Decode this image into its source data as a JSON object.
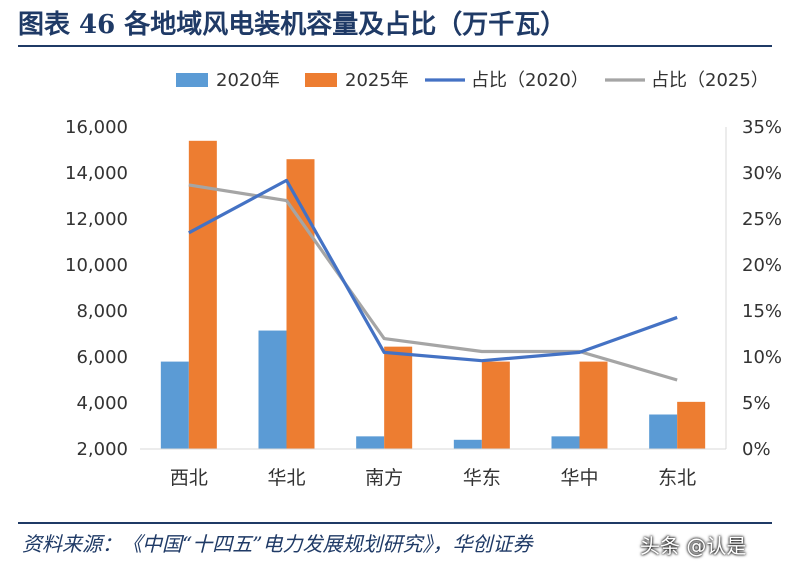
{
  "figure_title": "图表 46  各地域风电装机容量及占比（万千瓦）",
  "source_text": "资料来源：《中国“十四五”电力发展规划研究》，华创证券",
  "watermark": "头条 @认是",
  "colors": {
    "bar2020": "#5b9bd5",
    "bar2025": "#ed7d31",
    "line2020": "#4472c4",
    "line2025": "#a5a5a5",
    "title": "#1f3a66"
  },
  "chart_data": {
    "type": "bar",
    "title": "",
    "xlabel": "",
    "ylabel": "",
    "categories": [
      "西北",
      "华北",
      "南方",
      "华东",
      "华中",
      "东北"
    ],
    "ylim": [
      2000,
      16000
    ],
    "y_ticks": [
      "2,000",
      "4,000",
      "6,000",
      "8,000",
      "10,000",
      "12,000",
      "14,000",
      "16,000"
    ],
    "y2lim": [
      0,
      35
    ],
    "y2_ticks": [
      "0%",
      "5%",
      "10%",
      "15%",
      "20%",
      "25%",
      "30%",
      "35%"
    ],
    "series": [
      {
        "name": "2020年",
        "type": "bar",
        "axis": "left",
        "values": [
          5800,
          7150,
          2550,
          2400,
          2550,
          3500
        ]
      },
      {
        "name": "2025年",
        "type": "bar",
        "axis": "right_none",
        "values": [
          15400,
          14600,
          6450,
          5800,
          5800,
          4050
        ]
      },
      {
        "name": "占比（2020）",
        "type": "line",
        "axis": "right",
        "values": [
          23.5,
          29.2,
          10.5,
          9.6,
          10.5,
          14.3
        ]
      },
      {
        "name": "占比（2025）",
        "type": "line",
        "axis": "right",
        "values": [
          28.7,
          27.0,
          12.0,
          10.6,
          10.6,
          7.5
        ]
      }
    ],
    "legend_position": "top",
    "grid": false
  }
}
